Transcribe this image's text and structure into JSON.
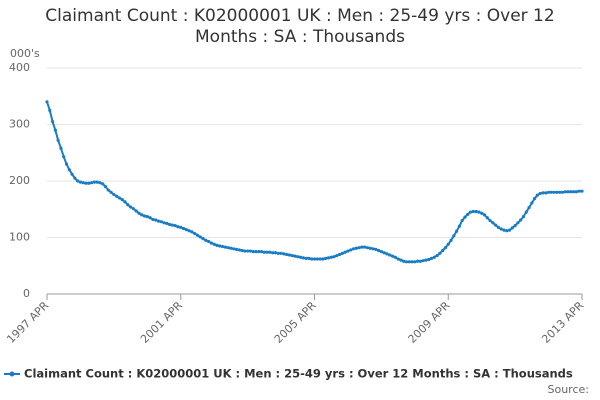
{
  "chart_data": {
    "type": "line",
    "title": "Claimant Count : K02000001 UK : Men : 25-49 yrs : Over 12 Months : SA : Thousands",
    "y_unit": "000's",
    "source": "Source:",
    "categories": [
      "1997 APR",
      null,
      null,
      null,
      null,
      null,
      null,
      null,
      null,
      null,
      null,
      null,
      null,
      null,
      null,
      null,
      null,
      null,
      null,
      null,
      null,
      null,
      null,
      null,
      null,
      null,
      null,
      null,
      null,
      null,
      null,
      null,
      null,
      null,
      null,
      null,
      null,
      null,
      null,
      null,
      null,
      null,
      null,
      null,
      null,
      null,
      null,
      null,
      "2001 APR",
      null,
      null,
      null,
      null,
      null,
      null,
      null,
      null,
      null,
      null,
      null,
      null,
      null,
      null,
      null,
      null,
      null,
      null,
      null,
      null,
      null,
      null,
      null,
      null,
      null,
      null,
      null,
      null,
      null,
      null,
      null,
      null,
      null,
      null,
      null,
      null,
      null,
      null,
      null,
      null,
      null,
      null,
      null,
      null,
      null,
      null,
      null,
      "2005 APR",
      null,
      null,
      null,
      null,
      null,
      null,
      null,
      null,
      null,
      null,
      null,
      null,
      null,
      null,
      null,
      null,
      null,
      null,
      null,
      null,
      null,
      null,
      null,
      null,
      null,
      null,
      null,
      null,
      null,
      null,
      null,
      null,
      null,
      null,
      null,
      null,
      null,
      null,
      null,
      null,
      null,
      null,
      null,
      null,
      null,
      null,
      null,
      "2009 APR",
      null,
      null,
      null,
      null,
      null,
      null,
      null,
      null,
      null,
      null,
      null,
      null,
      null,
      null,
      null,
      null,
      null,
      null,
      null,
      null,
      null,
      null,
      null,
      null,
      null,
      null,
      null,
      null,
      null,
      null,
      null,
      null,
      null,
      null,
      null,
      null,
      null,
      null,
      null,
      null,
      null,
      null,
      null,
      null,
      null,
      null,
      null,
      "2013 APR"
    ],
    "series": [
      {
        "name": "Claimant Count : K02000001 UK : Men : 25-49 yrs : Over 12 Months : SA : Thousands",
        "color": "#1a7dc4",
        "values": [
          340,
          325,
          305,
          290,
          272,
          258,
          243,
          230,
          220,
          212,
          205,
          200,
          198,
          197,
          196,
          196,
          197,
          198,
          198,
          197,
          195,
          190,
          184,
          180,
          176,
          173,
          170,
          167,
          163,
          158,
          154,
          151,
          147,
          143,
          140,
          138,
          137,
          135,
          132,
          131,
          129,
          128,
          126,
          125,
          123,
          122,
          121,
          119,
          118,
          116,
          114,
          112,
          110,
          107,
          104,
          101,
          98,
          95,
          93,
          90,
          88,
          86,
          85,
          84,
          83,
          82,
          81,
          80,
          79,
          78,
          77,
          76,
          76,
          76,
          75,
          75,
          75,
          75,
          74,
          74,
          74,
          73,
          73,
          72,
          72,
          71,
          70,
          69,
          68,
          67,
          66,
          65,
          64,
          63,
          63,
          62,
          62,
          62,
          62,
          62,
          63,
          64,
          65,
          66,
          68,
          70,
          72,
          74,
          76,
          78,
          80,
          81,
          82,
          83,
          83,
          82,
          81,
          80,
          79,
          77,
          75,
          73,
          71,
          69,
          67,
          65,
          62,
          60,
          58,
          57,
          57,
          57,
          57,
          58,
          58,
          59,
          60,
          61,
          63,
          65,
          68,
          72,
          77,
          82,
          88,
          95,
          103,
          111,
          120,
          130,
          136,
          141,
          145,
          146,
          146,
          145,
          143,
          140,
          135,
          130,
          126,
          122,
          118,
          115,
          113,
          112,
          113,
          117,
          121,
          126,
          131,
          137,
          145,
          153,
          161,
          169,
          175,
          178,
          179,
          179,
          180,
          180,
          180,
          180,
          180,
          180,
          181,
          181,
          181,
          181,
          181,
          182,
          182
        ]
      }
    ],
    "ylim": [
      0,
      400
    ],
    "yticks": [
      0,
      100,
      200,
      300,
      400
    ],
    "grid": true
  }
}
